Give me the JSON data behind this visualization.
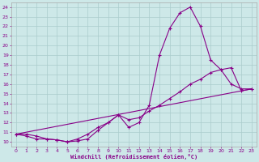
{
  "xlabel": "Windchill (Refroidissement éolien,°C)",
  "bg_color": "#cde8e8",
  "line_color": "#880088",
  "grid_color": "#aacccc",
  "spine_color": "#aaaaaa",
  "xlim": [
    -0.5,
    23.5
  ],
  "ylim": [
    9.5,
    24.5
  ],
  "xticks": [
    0,
    1,
    2,
    3,
    4,
    5,
    6,
    7,
    8,
    9,
    10,
    11,
    12,
    13,
    14,
    15,
    16,
    17,
    18,
    19,
    20,
    21,
    22,
    23
  ],
  "yticks": [
    10,
    11,
    12,
    13,
    14,
    15,
    16,
    17,
    18,
    19,
    20,
    21,
    22,
    23,
    24
  ],
  "curve1_x": [
    0,
    1,
    2,
    3,
    4,
    5,
    6,
    7,
    8,
    9,
    10,
    11,
    12,
    13,
    14,
    15,
    16,
    17,
    18,
    19,
    20,
    21,
    22,
    23
  ],
  "curve1_y": [
    10.8,
    10.8,
    10.6,
    10.3,
    10.2,
    10.0,
    10.1,
    10.3,
    11.2,
    12.0,
    12.8,
    11.5,
    12.0,
    13.8,
    19.0,
    21.8,
    23.4,
    24.0,
    22.0,
    18.5,
    17.5,
    16.0,
    15.5,
    15.5
  ],
  "curve2_x": [
    0,
    1,
    2,
    3,
    4,
    5,
    6,
    7,
    8,
    9,
    10,
    11,
    12,
    13,
    14,
    15,
    16,
    17,
    18,
    19,
    20,
    21,
    22,
    23
  ],
  "curve2_y": [
    10.8,
    10.6,
    10.3,
    10.3,
    10.2,
    10.0,
    10.3,
    10.8,
    11.5,
    12.0,
    12.8,
    12.3,
    12.5,
    13.2,
    13.8,
    14.5,
    15.2,
    16.0,
    16.5,
    17.2,
    17.5,
    17.7,
    15.3,
    15.5
  ],
  "curve3_x": [
    0,
    23
  ],
  "curve3_y": [
    10.8,
    15.5
  ]
}
